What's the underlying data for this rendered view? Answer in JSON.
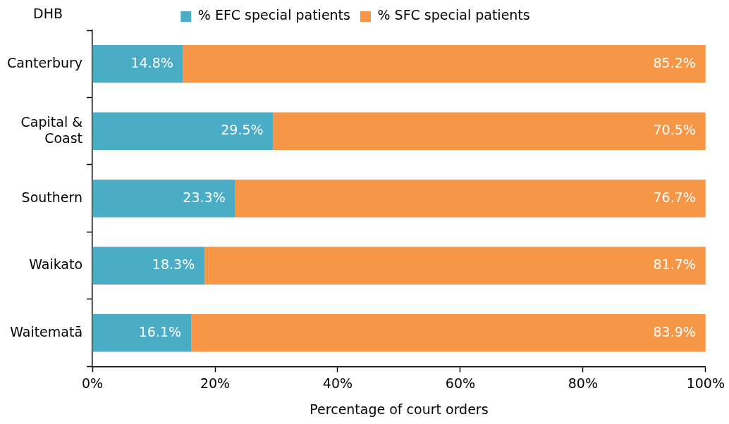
{
  "chart_data": {
    "type": "bar",
    "orientation": "horizontal",
    "stacked": true,
    "ylabel": "DHB",
    "xlabel": "Percentage of court orders",
    "categories": [
      "Canterbury",
      "Capital & Coast",
      "Southern",
      "Waikato",
      "Waitematā"
    ],
    "series": [
      {
        "name": "% EFC special patients",
        "color": "#4bacc6",
        "values": [
          14.8,
          29.5,
          23.3,
          18.3,
          16.1
        ],
        "value_labels": [
          "14.8%",
          "29.5%",
          "23.3%",
          "18.3%",
          "16.1%"
        ]
      },
      {
        "name": "% SFC special patients",
        "color": "#f79646",
        "values": [
          85.2,
          70.5,
          76.7,
          81.7,
          83.9
        ],
        "value_labels": [
          "85.2%",
          "70.5%",
          "76.7%",
          "81.7%",
          "83.9%"
        ]
      }
    ],
    "xlim": [
      0,
      100
    ],
    "xticks": [
      {
        "value": 0,
        "label": "0%"
      },
      {
        "value": 20,
        "label": "20%"
      },
      {
        "value": 40,
        "label": "40%"
      },
      {
        "value": 60,
        "label": "60%"
      },
      {
        "value": 80,
        "label": "80%"
      },
      {
        "value": 100,
        "label": "100%"
      }
    ],
    "grid": false,
    "legend": "top"
  }
}
